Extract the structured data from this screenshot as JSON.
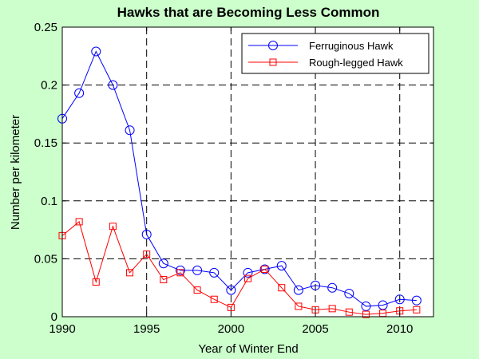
{
  "chart_data": {
    "type": "line",
    "title": "Hawks that are Becoming Less Common",
    "xlabel": "Year of Winter End",
    "ylabel": "Number per kilometer",
    "xlim": [
      1990,
      2012
    ],
    "ylim": [
      0,
      0.25
    ],
    "xticks": [
      1990,
      1995,
      2000,
      2005,
      2010
    ],
    "yticks": [
      0,
      0.05,
      0.1,
      0.15,
      0.2,
      0.25
    ],
    "xtick_labels": [
      "1990",
      "1995",
      "2000",
      "2005",
      "2010"
    ],
    "ytick_labels": [
      "0",
      "0.05",
      "0.1",
      "0.15",
      "0.2",
      "0.25"
    ],
    "grid": true,
    "legend_position": "top-right",
    "x": [
      1990,
      1991,
      1992,
      1993,
      1994,
      1995,
      1996,
      1997,
      1998,
      1999,
      2000,
      2001,
      2002,
      2003,
      2004,
      2005,
      2006,
      2007,
      2008,
      2009,
      2010,
      2011
    ],
    "series": [
      {
        "name": "Ferruginous Hawk",
        "color": "#0000ff",
        "marker": "circle",
        "values": [
          0.171,
          0.193,
          0.229,
          0.2,
          0.161,
          0.071,
          0.046,
          0.04,
          0.04,
          0.038,
          0.023,
          0.038,
          0.041,
          0.044,
          0.023,
          0.027,
          0.025,
          0.02,
          0.009,
          0.01,
          0.015,
          0.014
        ]
      },
      {
        "name": "Rough-legged Hawk",
        "color": "#ff0000",
        "marker": "square",
        "values": [
          0.07,
          0.082,
          0.03,
          0.078,
          0.038,
          0.054,
          0.032,
          0.038,
          0.023,
          0.015,
          0.008,
          0.033,
          0.041,
          0.025,
          0.009,
          0.006,
          0.007,
          0.004,
          0.002,
          0.003,
          0.005,
          0.006
        ]
      }
    ]
  }
}
